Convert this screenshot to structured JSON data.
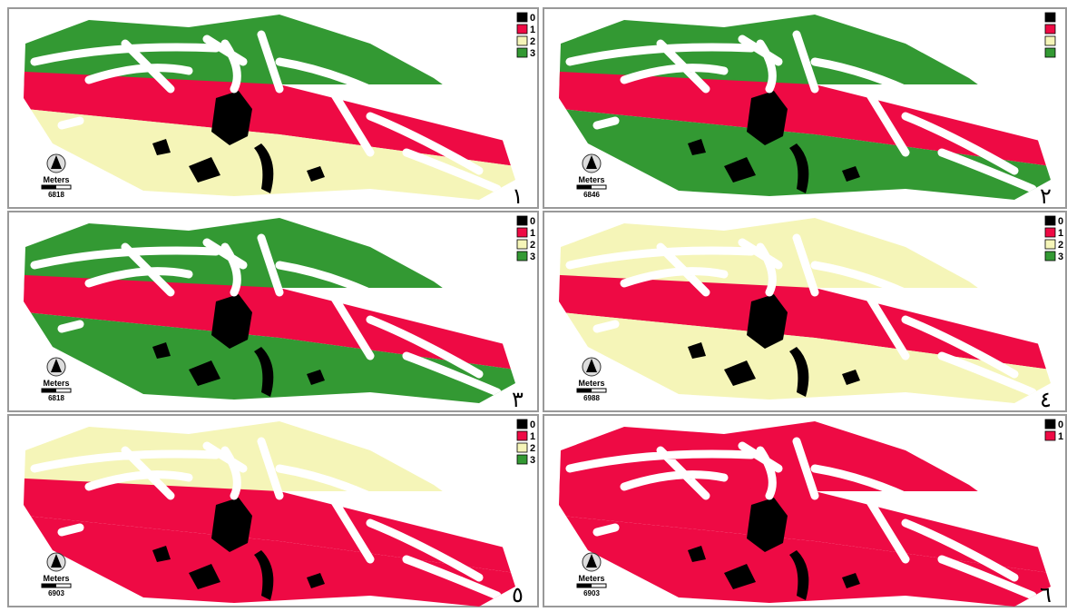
{
  "panels": [
    {
      "number": "١",
      "north_label": "Meters",
      "scale_label": "6818",
      "legend": [
        {
          "label": "0",
          "color": "#000000"
        },
        {
          "label": "1",
          "color": "#ee0a44"
        },
        {
          "label": "2",
          "color": "#f5f5b8"
        },
        {
          "label": "3",
          "color": "#339933"
        }
      ]
    },
    {
      "number": "٢",
      "north_label": "Meters",
      "scale_label": "6846",
      "legend": [
        {
          "color": "#000000"
        },
        {
          "color": "#ee0a44"
        },
        {
          "color": "#f5f5b8"
        },
        {
          "color": "#339933"
        }
      ]
    },
    {
      "number": "٣",
      "north_label": "Meters",
      "scale_label": "6818",
      "legend": [
        {
          "label": "0",
          "color": "#000000"
        },
        {
          "label": "1",
          "color": "#ee0a44"
        },
        {
          "label": "2",
          "color": "#f5f5b8"
        },
        {
          "label": "3",
          "color": "#339933"
        }
      ]
    },
    {
      "number": "٤",
      "north_label": "Meters",
      "scale_label": "6988",
      "legend": [
        {
          "label": "0",
          "color": "#000000"
        },
        {
          "label": "1",
          "color": "#ee0a44"
        },
        {
          "label": "2",
          "color": "#f5f5b8"
        },
        {
          "label": "3",
          "color": "#339933"
        }
      ]
    },
    {
      "number": "٥",
      "north_label": "Meters",
      "scale_label": "6903",
      "legend": [
        {
          "label": "0",
          "color": "#000000"
        },
        {
          "label": "1",
          "color": "#ee0a44"
        },
        {
          "label": "2",
          "color": "#f5f5b8"
        },
        {
          "label": "3",
          "color": "#339933"
        }
      ]
    },
    {
      "number": "٦",
      "north_label": "Meters",
      "scale_label": "6903",
      "legend": [
        {
          "label": "0",
          "color": "#000000"
        },
        {
          "label": "1",
          "color": "#ee0a44"
        }
      ]
    }
  ]
}
